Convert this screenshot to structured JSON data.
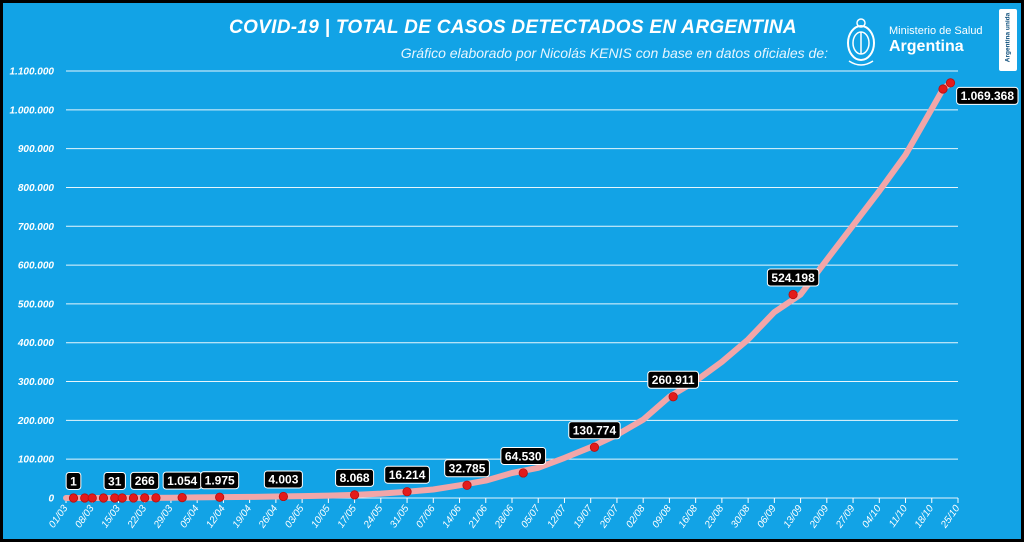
{
  "header": {
    "title": "COVID-19  |  TOTAL DE CASOS DETECTADOS EN ARGENTINA",
    "subtitle": "Gráfico elaborado por Nicolás KENIS con base en datos oficiales de:"
  },
  "logo": {
    "org_line1": "Ministerio de Salud",
    "org_line2": "Argentina",
    "brand": "Argentina unida",
    "icon": "argentina-seal-icon"
  },
  "colors": {
    "background": "#12a3e6",
    "line": "#f2a6a8",
    "marker": "#e31b1b",
    "label_bg": "#000000"
  },
  "chart_data": {
    "type": "line",
    "title": "COVID-19 | TOTAL DE CASOS DETECTADOS EN ARGENTINA",
    "xlabel": "",
    "ylabel": "",
    "ylim": [
      0,
      1100000
    ],
    "grid": true,
    "legend": "none",
    "x_start": "01/03",
    "x_end": "25/10",
    "y_ticks": [
      0,
      100000,
      200000,
      300000,
      400000,
      500000,
      600000,
      700000,
      800000,
      900000,
      1000000,
      1100000
    ],
    "y_tick_labels": [
      "0",
      "100.000",
      "200.000",
      "300.000",
      "400.000",
      "500.000",
      "600.000",
      "700.000",
      "800.000",
      "900.000",
      "1.000.000",
      "1.100.000"
    ],
    "x_tick_labels": [
      "01/03",
      "08/03",
      "15/03",
      "22/03",
      "29/03",
      "05/04",
      "12/04",
      "19/04",
      "26/04",
      "03/05",
      "10/05",
      "17/05",
      "24/05",
      "31/05",
      "07/06",
      "14/06",
      "21/06",
      "28/06",
      "05/07",
      "12/07",
      "19/07",
      "26/07",
      "02/08",
      "09/08",
      "16/08",
      "23/08",
      "30/08",
      "06/09",
      "13/09",
      "20/09",
      "27/09",
      "04/10",
      "11/10",
      "18/10",
      "25/10"
    ],
    "series": [
      {
        "x": [
          "01/03",
          "08/03",
          "15/03",
          "22/03",
          "29/03",
          "05/04",
          "12/04",
          "19/04",
          "26/04",
          "03/05",
          "10/05",
          "17/05",
          "24/05",
          "31/05",
          "07/06",
          "14/06",
          "21/06",
          "28/06",
          "05/07",
          "12/07",
          "19/07",
          "26/07",
          "02/08",
          "09/08",
          "16/08",
          "23/08",
          "30/08",
          "06/09",
          "13/09",
          "20/09",
          "27/09",
          "04/10",
          "11/10",
          "18/10",
          "21/10",
          "23/10"
        ],
        "values": [
          0,
          12,
          56,
          266,
          820,
          1554,
          2208,
          2930,
          3780,
          4770,
          6270,
          8068,
          11350,
          16214,
          22020,
          32785,
          44930,
          64530,
          77810,
          103260,
          130774,
          162530,
          201920,
          260911,
          301190,
          350870,
          408420,
          478790,
          524198,
          613650,
          702480,
          790820,
          883880,
          1002650,
          1053650,
          1069368
        ]
      }
    ],
    "markers": [
      {
        "x": "03/03",
        "value": 1
      },
      {
        "x": "06/03",
        "value": 8
      },
      {
        "x": "08/03",
        "value": 12
      },
      {
        "x": "11/03",
        "value": 19
      },
      {
        "x": "14/03",
        "value": 31
      },
      {
        "x": "16/03",
        "value": 65
      },
      {
        "x": "19/03",
        "value": 128
      },
      {
        "x": "22/03",
        "value": 266
      },
      {
        "x": "25/03",
        "value": 387
      },
      {
        "x": "01/04",
        "value": 1054
      },
      {
        "x": "11/04",
        "value": 1975
      },
      {
        "x": "28/04",
        "value": 4003
      },
      {
        "x": "17/05",
        "value": 8068
      },
      {
        "x": "31/05",
        "value": 16214
      },
      {
        "x": "16/06",
        "value": 32785
      },
      {
        "x": "01/07",
        "value": 64530
      },
      {
        "x": "20/07",
        "value": 130774
      },
      {
        "x": "10/08",
        "value": 260911
      },
      {
        "x": "11/09",
        "value": 524198
      },
      {
        "x": "21/10",
        "value": 1053650
      },
      {
        "x": "23/10",
        "value": 1069368
      }
    ],
    "annotations": [
      {
        "text": "1",
        "x": "03/03",
        "value": 1
      },
      {
        "text": "31",
        "x": "14/03",
        "value": 31
      },
      {
        "text": "266",
        "x": "22/03",
        "value": 266
      },
      {
        "text": "1.054",
        "x": "01/04",
        "value": 1054
      },
      {
        "text": "1.975",
        "x": "11/04",
        "value": 1975
      },
      {
        "text": "4.003",
        "x": "28/04",
        "value": 4003
      },
      {
        "text": "8.068",
        "x": "17/05",
        "value": 8068
      },
      {
        "text": "16.214",
        "x": "31/05",
        "value": 16214
      },
      {
        "text": "32.785",
        "x": "16/06",
        "value": 32785
      },
      {
        "text": "64.530",
        "x": "01/07",
        "value": 64530
      },
      {
        "text": "130.774",
        "x": "20/07",
        "value": 130774
      },
      {
        "text": "260.911",
        "x": "10/08",
        "value": 260911
      },
      {
        "text": "524.198",
        "x": "11/09",
        "value": 524198
      },
      {
        "text": "1.069.368",
        "x": "23/10",
        "value": 1069368
      }
    ]
  }
}
